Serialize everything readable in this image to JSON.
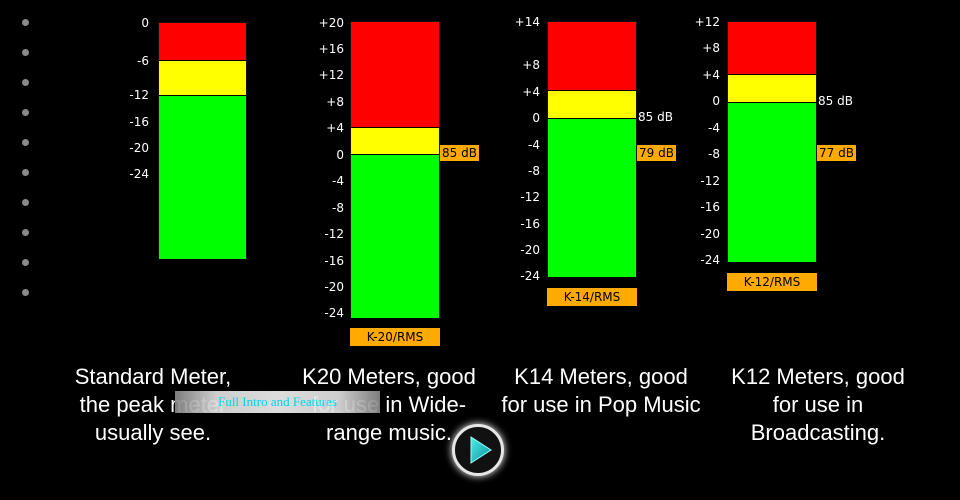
{
  "meters": [
    {
      "id": "standard",
      "ticks": [
        {
          "label": "0",
          "value": 0
        },
        {
          "label": "-6",
          "value": -6
        },
        {
          "label": "-12",
          "value": -12
        },
        {
          "label": "-16",
          "value": -16
        },
        {
          "label": "-20",
          "value": -20
        },
        {
          "label": "-24",
          "value": -24
        }
      ],
      "reference": null,
      "tag": null
    },
    {
      "id": "k20",
      "ticks": [
        {
          "label": "+20",
          "value": 20
        },
        {
          "label": "+16",
          "value": 16
        },
        {
          "label": "+12",
          "value": 12
        },
        {
          "label": "+8",
          "value": 8
        },
        {
          "label": "+4",
          "value": 4
        },
        {
          "label": "0",
          "value": 0
        },
        {
          "label": "-4",
          "value": -4
        },
        {
          "label": "-8",
          "value": -8
        },
        {
          "label": "-12",
          "value": -12
        },
        {
          "label": "-16",
          "value": -16
        },
        {
          "label": "-20",
          "value": -20
        },
        {
          "label": "-24",
          "value": -24
        }
      ],
      "reference": {
        "label": "85 dB",
        "style": "box"
      },
      "tag": "K-20/RMS"
    },
    {
      "id": "k14",
      "ticks": [
        {
          "label": "+14",
          "value": 14
        },
        {
          "label": "+8",
          "value": 8
        },
        {
          "label": "+4",
          "value": 4
        },
        {
          "label": "0",
          "value": 0
        },
        {
          "label": "-4",
          "value": -4
        },
        {
          "label": "-8",
          "value": -8
        },
        {
          "label": "-12",
          "value": -12
        },
        {
          "label": "-16",
          "value": -16
        },
        {
          "label": "-20",
          "value": -20
        },
        {
          "label": "-24",
          "value": -24
        }
      ],
      "reference": {
        "label": "85 dB",
        "style": "plain"
      },
      "reference2": {
        "label": "79 dB",
        "style": "box"
      },
      "tag": "K-14/RMS"
    },
    {
      "id": "k12",
      "ticks": [
        {
          "label": "+12",
          "value": 12
        },
        {
          "label": "+8",
          "value": 8
        },
        {
          "label": "+4",
          "value": 4
        },
        {
          "label": "0",
          "value": 0
        },
        {
          "label": "-4",
          "value": -4
        },
        {
          "label": "-8",
          "value": -8
        },
        {
          "label": "-12",
          "value": -12
        },
        {
          "label": "-16",
          "value": -16
        },
        {
          "label": "-20",
          "value": -20
        },
        {
          "label": "-24",
          "value": -24
        }
      ],
      "reference": {
        "label": "85 dB",
        "style": "plain"
      },
      "reference2": {
        "label": "77 dB",
        "style": "box"
      },
      "tag": "K-12/RMS"
    }
  ],
  "captions": [
    [
      "Standard Meter,",
      "the peak meter",
      "usually see."
    ],
    [
      "K20 Meters, good",
      "for use in Wide-",
      "range music."
    ],
    [
      "K14 Meters, good",
      "for use in Pop Music",
      ""
    ],
    [
      "K12 Meters, good",
      "for use in",
      "Broadcasting."
    ]
  ],
  "overlay_text": "Full Intro and Features",
  "colors": {
    "red": "#ff0000",
    "yellow": "#ffff00",
    "green": "#00ff00",
    "tag": "#ffaa00"
  },
  "play_icon": "play-icon"
}
